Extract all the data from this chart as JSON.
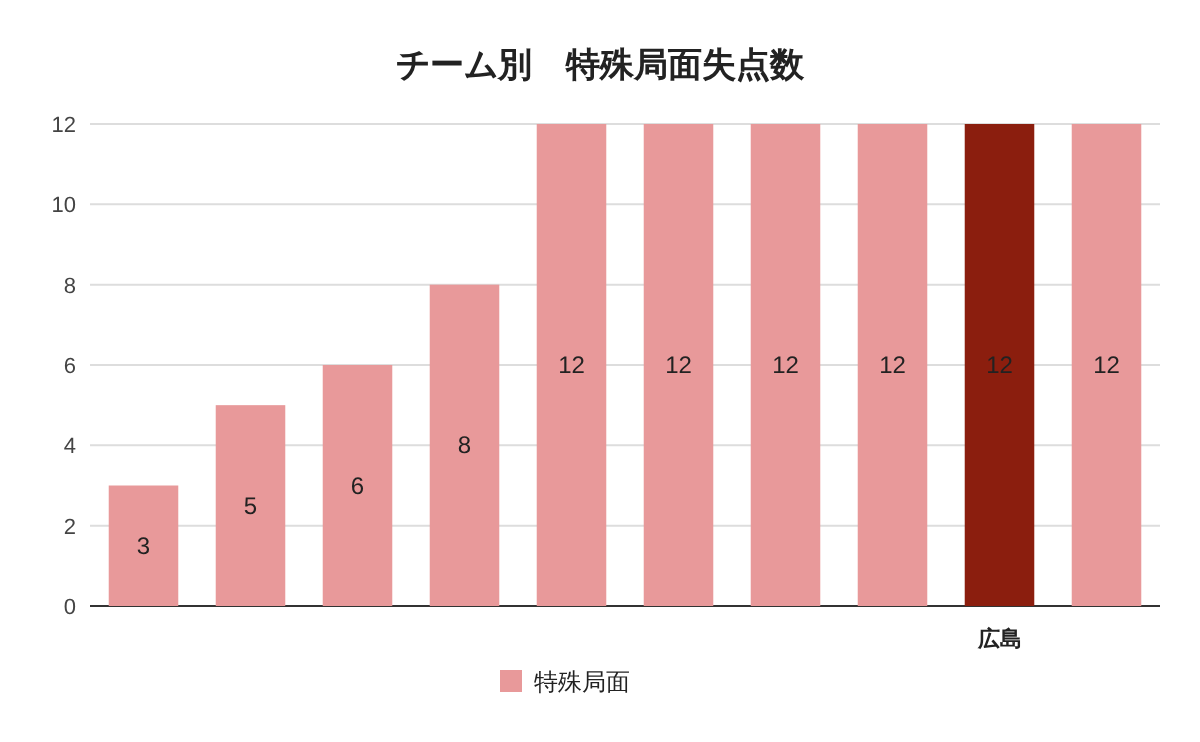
{
  "chart_data": {
    "type": "bar",
    "title": "チーム別　特殊局面失点数",
    "categories": [
      null,
      null,
      null,
      null,
      null,
      null,
      null,
      null,
      "広島",
      null
    ],
    "series": [
      {
        "name": "特殊局面",
        "color": "#e8999a",
        "colors": [
          "#e8999a",
          "#e8999a",
          "#e8999a",
          "#e8999a",
          "#e8999a",
          "#e8999a",
          "#e8999a",
          "#e8999a",
          "#8b1e0e",
          "#e8999a"
        ],
        "values": [
          3,
          5,
          6,
          8,
          12,
          12,
          12,
          12,
          12,
          12
        ]
      }
    ],
    "ylim": [
      0,
      12
    ],
    "yticks": [
      0,
      2,
      4,
      6,
      8,
      10,
      12
    ],
    "grid": "y",
    "data_labels": true,
    "legend": "bottom"
  }
}
